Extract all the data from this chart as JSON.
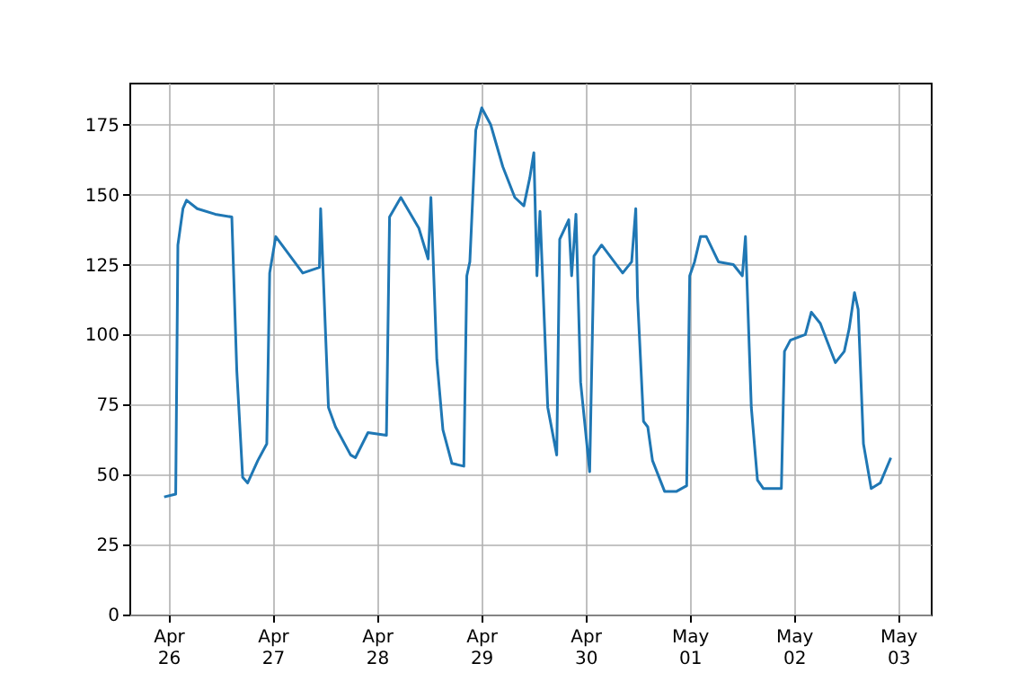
{
  "chart_data": {
    "type": "line",
    "grid": true,
    "x": [
      "--04-25T23:00",
      "--04-26T01:40",
      "--04-26T02:10",
      "--04-26T03:20",
      "--04-26T04:10",
      "--04-26T06:37",
      "--04-26T10:45",
      "--04-26T14:35",
      "--04-26T15:44",
      "--04-26T17:05",
      "--04-26T18:13",
      "--04-26T20:34",
      "--04-26T22:38",
      "--04-26T23:18",
      "--04-27T00:42",
      "--04-27T06:55",
      "--04-27T10:45",
      "--04-27T11:02",
      "--04-27T12:50",
      "--04-27T14:28",
      "--04-27T17:56",
      "--04-27T19:02",
      "--04-27T21:56",
      "--04-28T02:11",
      "--04-28T02:54",
      "--04-28T05:30",
      "--04-28T09:39",
      "--04-28T11:47",
      "--04-28T12:25",
      "--04-28T13:47",
      "--04-28T15:11",
      "--04-28T17:15",
      "--04-28T20:00",
      "--04-28T20:41",
      "--04-28T21:23",
      "--04-28T22:45",
      "--04-29T00:07",
      "--04-29T02:11",
      "--04-29T04:58",
      "--04-29T07:44",
      "--04-29T09:49",
      "--04-29T11:11",
      "--04-29T12:07",
      "--04-29T12:50",
      "--04-29T13:32",
      "--04-29T15:19",
      "--04-29T17:23",
      "--04-29T18:04",
      "--04-29T20:09",
      "--04-29T20:49",
      "--04-29T21:49",
      "--04-29T22:53",
      "--04-30T00:58",
      "--04-30T01:57",
      "--04-30T03:43",
      "--04-30T08:34",
      "--04-30T10:38",
      "--04-30T11:35",
      "--04-30T12:00",
      "--04-30T13:22",
      "--04-30T14:21",
      "--04-30T15:26",
      "--04-30T18:13",
      "--04-30T20:59",
      "--04-30T23:18",
      "--05-01T00:00",
      "--05-01T01:07",
      "--05-01T02:29",
      "--05-01T03:50",
      "--05-01T06:37",
      "--05-01T10:03",
      "--05-01T12:07",
      "--05-01T12:50",
      "--05-01T14:11",
      "--05-01T15:36",
      "--05-01T16:58",
      "--05-01T21:06",
      "--05-01T21:49",
      "--05-01T23:11",
      "--05-02T02:37",
      "--05-02T04:00",
      "--05-02T06:04",
      "--05-02T09:32",
      "--05-02T11:35",
      "--05-02T12:42",
      "--05-02T13:56",
      "--05-02T14:47",
      "--05-02T16:00",
      "--05-02T17:47",
      "--05-02T19:52",
      "--05-02T22:18"
    ],
    "series": [
      {
        "color": "#1f77b4",
        "values": [
          42,
          43,
          132,
          145,
          148,
          145,
          143,
          142,
          87,
          49,
          47,
          55,
          61,
          122,
          135,
          122,
          124,
          145,
          74,
          67,
          57,
          56,
          65,
          64,
          142,
          149,
          138,
          127,
          149,
          91,
          66,
          54,
          53,
          121,
          126,
          173,
          181,
          175,
          160,
          149,
          146,
          156,
          165,
          121,
          144,
          74,
          57,
          134,
          141,
          121,
          143,
          83,
          51,
          128,
          132,
          122,
          126,
          145,
          113,
          69,
          67,
          55,
          44,
          44,
          46,
          121,
          126,
          135,
          135,
          126,
          125,
          121,
          135,
          74,
          48,
          45,
          45,
          94,
          98,
          100,
          108,
          104,
          90,
          94,
          102,
          115,
          109,
          61,
          45,
          47,
          56
        ]
      }
    ],
    "xlim": [
      "--04-25T15:00",
      "--05-03T07:30"
    ],
    "xticks": [
      {
        "value": "--04-26",
        "label": "Apr 26"
      },
      {
        "value": "--04-27",
        "label": "Apr 27"
      },
      {
        "value": "--04-28",
        "label": "Apr 28"
      },
      {
        "value": "--04-29",
        "label": "Apr 29"
      },
      {
        "value": "--04-30",
        "label": "Apr 30"
      },
      {
        "value": "--05-01",
        "label": "May 01"
      },
      {
        "value": "--05-02",
        "label": "May 02"
      },
      {
        "value": "--05-03",
        "label": "May 03"
      }
    ],
    "ylim": [
      0,
      190
    ],
    "yticks": [
      0,
      25,
      50,
      75,
      100,
      125,
      150,
      175
    ]
  }
}
